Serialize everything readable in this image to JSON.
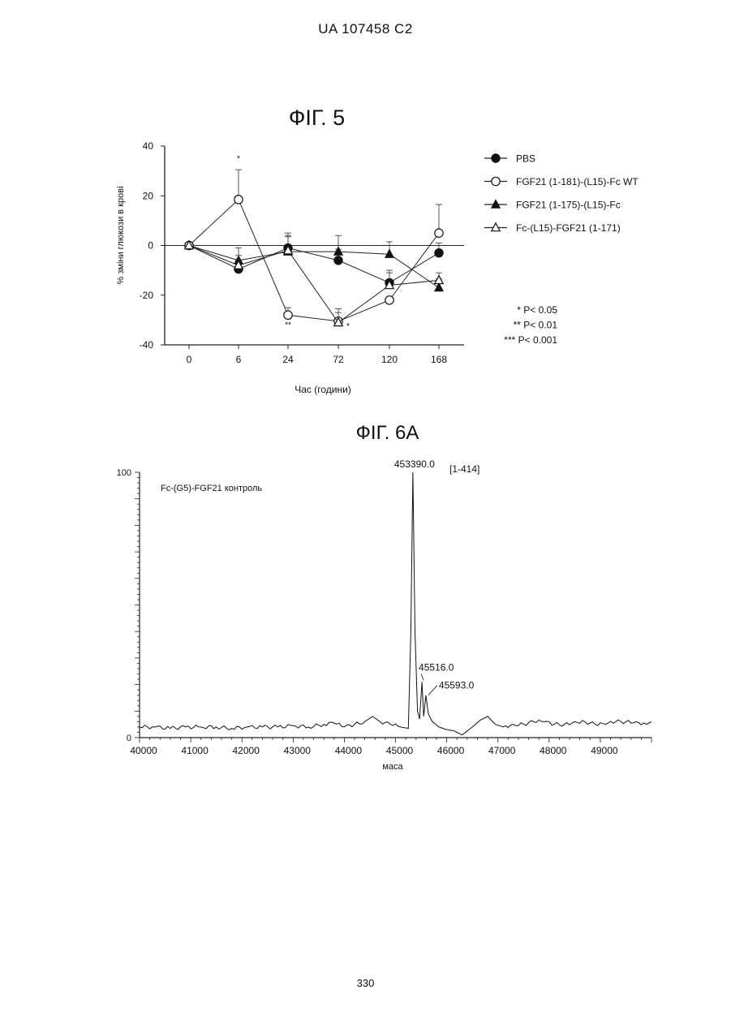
{
  "document": {
    "header": "UA   107458   C2",
    "page_number": "330"
  },
  "chart_data": [
    {
      "type": "line",
      "title": "ФІГ. 5",
      "xlabel": "Час (години)",
      "ylabel": "% зміни глюкози в крові",
      "categories": [
        "0",
        "6",
        "24",
        "72",
        "120",
        "168"
      ],
      "ylim": [
        -40,
        40
      ],
      "yticks": [
        40,
        20,
        0,
        -20,
        -40
      ],
      "reference_line": 0,
      "legend_position": "right",
      "series": [
        {
          "name": "PBS",
          "marker": "filled-circle",
          "values": [
            0,
            -9.5,
            -1,
            -6,
            -15,
            -3
          ],
          "err": [
            0,
            3,
            6,
            4.5,
            4,
            4
          ]
        },
        {
          "name": "FGF21 (1-181)-(L15)-Fc WT",
          "marker": "open-circle",
          "values": [
            0,
            18.5,
            -28,
            -30.5,
            -22,
            5
          ],
          "err": [
            0,
            12,
            3,
            5,
            0,
            11.5
          ]
        },
        {
          "name": "FGF21 (1-175)-(L15)-Fc",
          "marker": "filled-triangle",
          "values": [
            0,
            -6,
            -2.5,
            -2.5,
            -3.5,
            -17
          ],
          "err": [
            0,
            5,
            6,
            6.5,
            5,
            3.5
          ]
        },
        {
          "name": "Fc-(L15)-FGF21 (1-171)",
          "marker": "open-triangle",
          "values": [
            0,
            -8,
            -2,
            -31,
            -16,
            -14
          ],
          "err": [
            0,
            4,
            6,
            4,
            6,
            3
          ]
        }
      ],
      "annotations": [
        {
          "text": "*",
          "x": "6",
          "y": 34
        },
        {
          "text": "**",
          "x": "24",
          "y": -33
        },
        {
          "text": "*",
          "x": "72",
          "y": -33.5
        }
      ],
      "significance_legend": [
        "* P< 0.05",
        "** P< 0.01",
        "*** P< 0.001"
      ]
    },
    {
      "type": "line",
      "title": "ФІГ. 6А",
      "subtitle": "Fc-(G5)-FGF21 контроль",
      "xlabel": "маса",
      "ylabel": "",
      "xlim": [
        40000,
        50000
      ],
      "xticks": [
        "40000",
        "41000",
        "42000",
        "43000",
        "44000",
        "45000",
        "46000",
        "47000",
        "48000",
        "49000"
      ],
      "ylim": [
        0,
        100
      ],
      "yticks": [
        "0",
        "100"
      ],
      "range_label": "[1-414]",
      "peaks": [
        {
          "label": "453390.0",
          "x": 45339,
          "y": 100
        },
        {
          "label": "45516.0",
          "x": 45516,
          "y": 21
        },
        {
          "label": "45593.0",
          "x": 45593,
          "y": 16
        }
      ],
      "series": [
        {
          "x": [
            40000,
            40300,
            40600,
            40900,
            41200,
            41500,
            41800,
            42100,
            42400,
            42700,
            43000,
            43300,
            43600,
            43800,
            44000,
            44200,
            44400,
            44550,
            44700,
            44900,
            45100,
            45250,
            45300,
            45339,
            45380,
            45430,
            45470,
            45516,
            45550,
            45593,
            45640,
            45720,
            45850,
            46000,
            46150,
            46300,
            46400,
            46500,
            46650,
            46800,
            46950,
            47100,
            47300,
            47500,
            47700,
            47900,
            48100,
            48300,
            48500,
            48700,
            48900,
            49100,
            49300,
            49500,
            49700,
            49900,
            50000
          ],
          "y": [
            4,
            4,
            3.5,
            4,
            4,
            4,
            3.5,
            4,
            4,
            4,
            4.5,
            4,
            5,
            5.5,
            4,
            5,
            6,
            8,
            6,
            5,
            4,
            3.5,
            40,
            100,
            40,
            10,
            7,
            21,
            8,
            16,
            9,
            6,
            4,
            3,
            2.5,
            1,
            2.5,
            4,
            6.5,
            8,
            5,
            4,
            5,
            5,
            6,
            6,
            5,
            5,
            6,
            6,
            5,
            5,
            6,
            6,
            6,
            5,
            6
          ]
        }
      ]
    }
  ]
}
